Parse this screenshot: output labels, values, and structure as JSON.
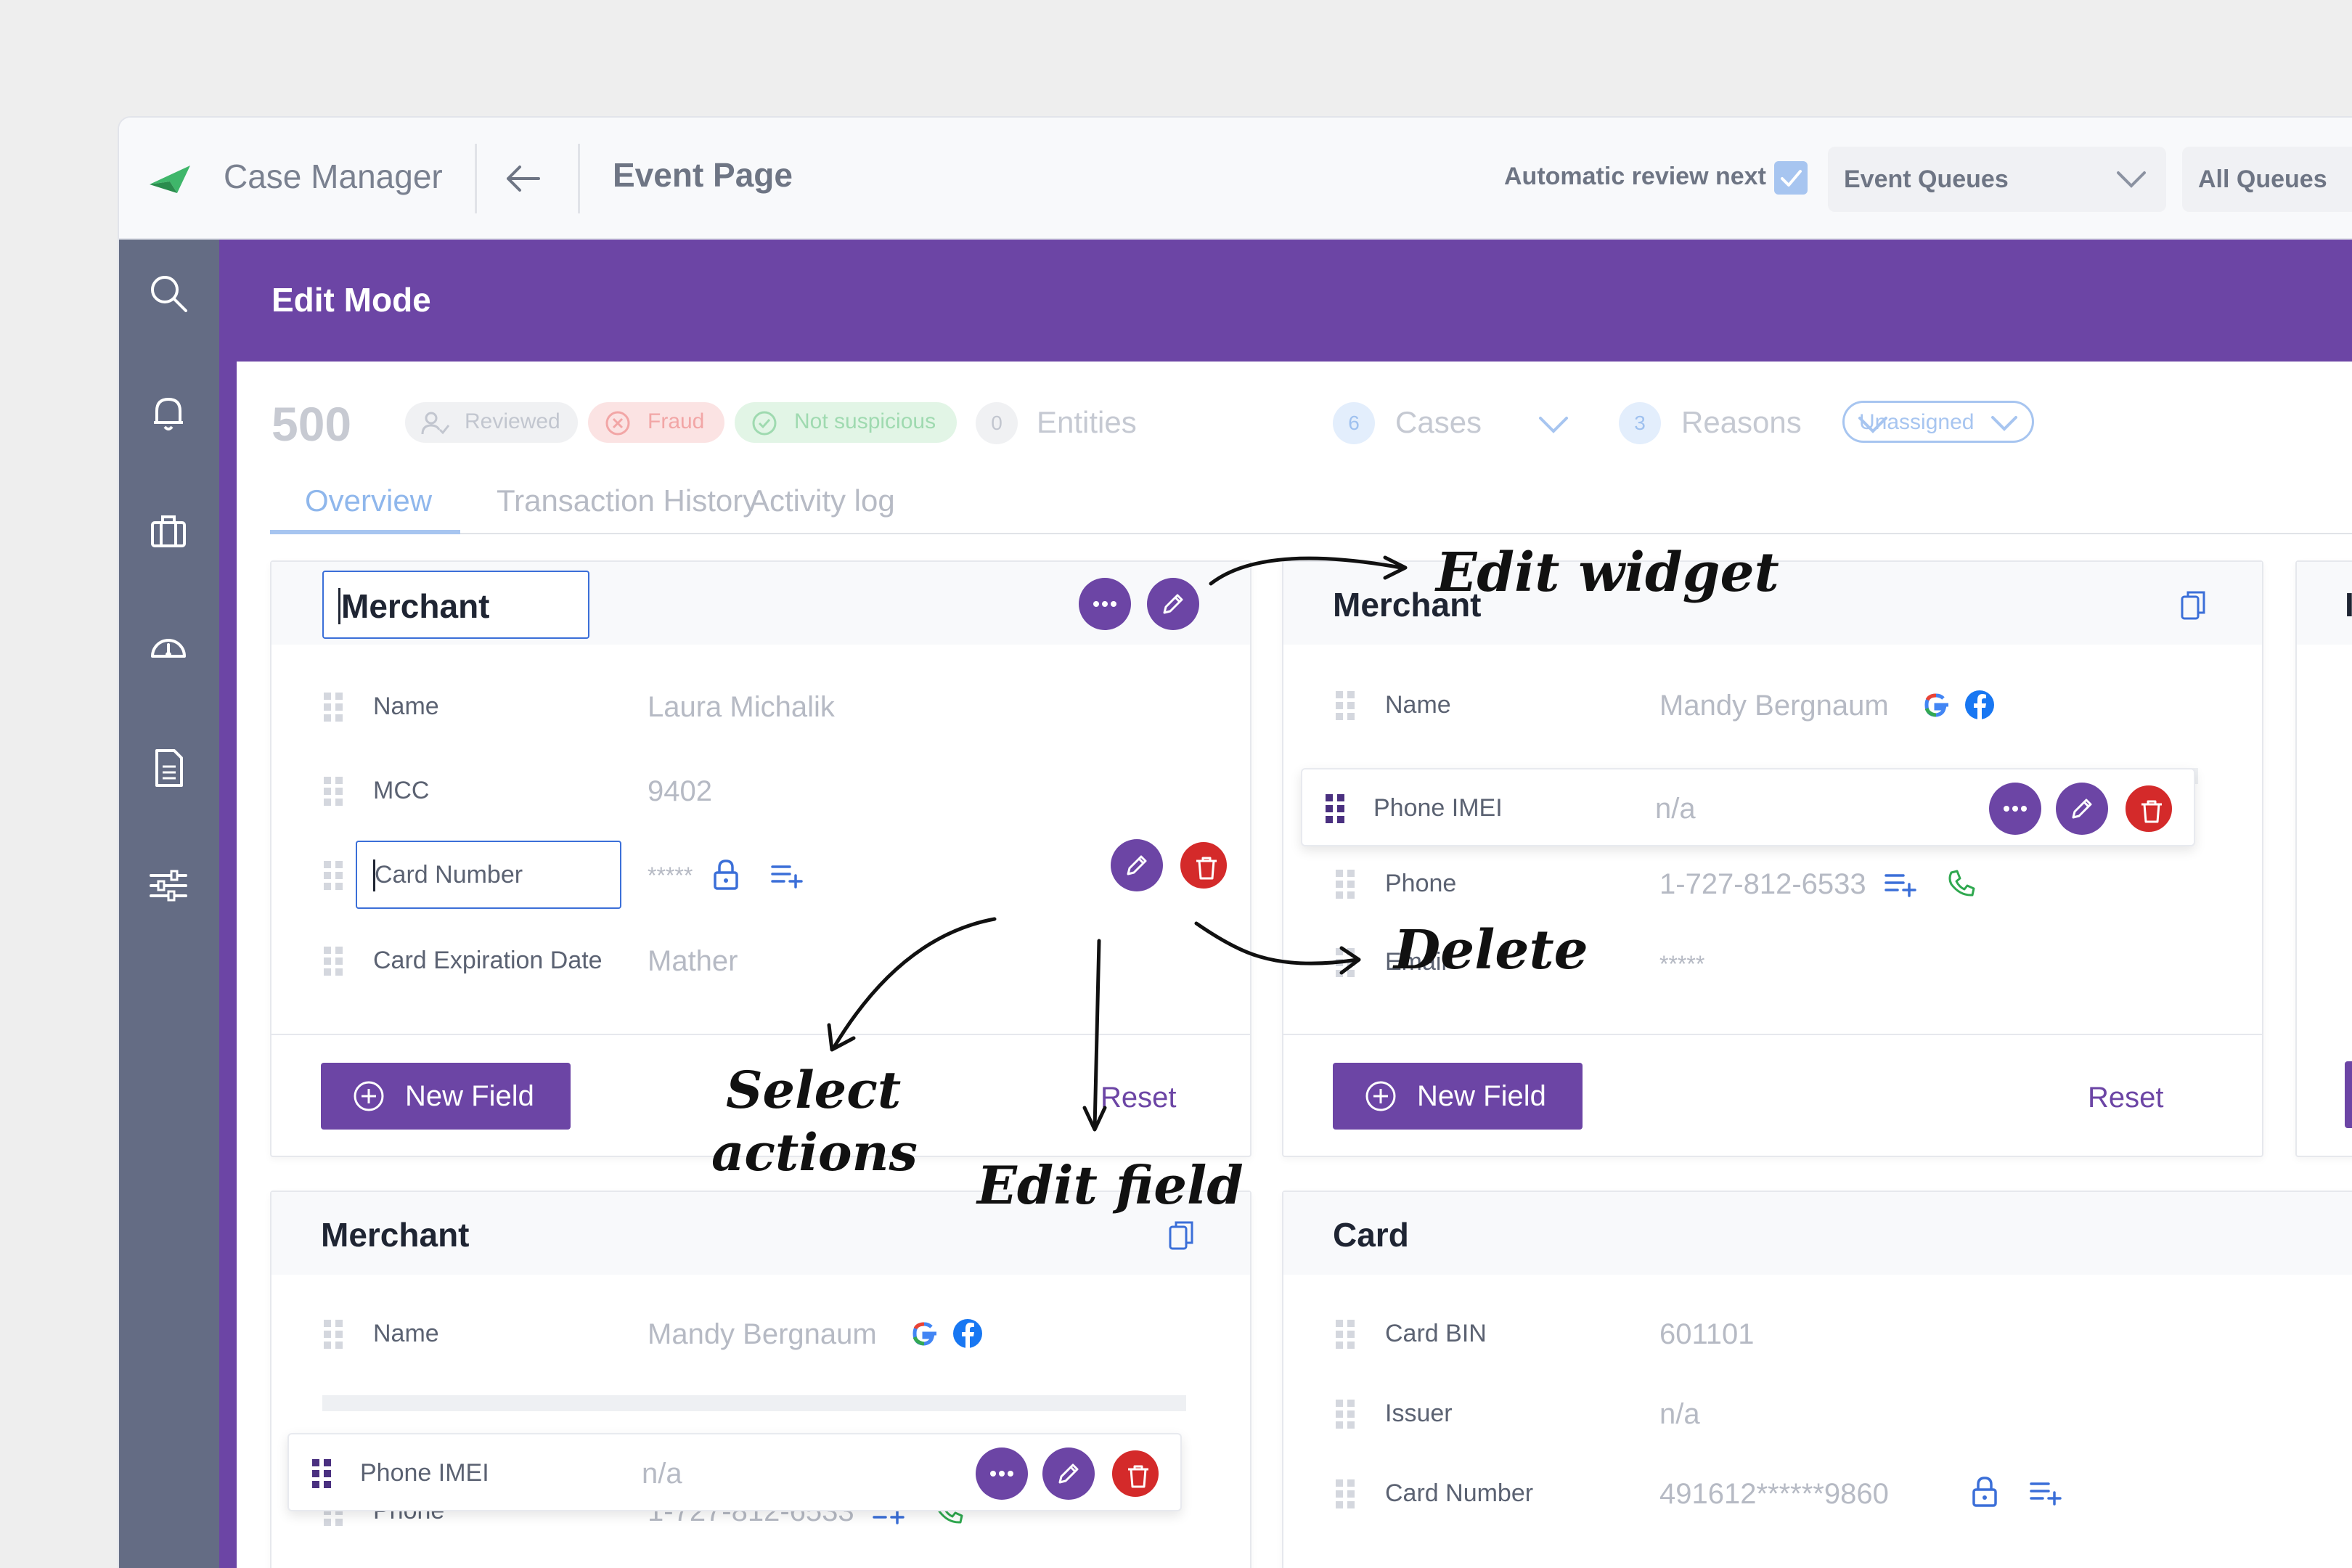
{
  "header": {
    "app_name": "Case Manager",
    "page_title": "Event Page",
    "auto_review_label": "Automatic review next",
    "auto_review_checked": true,
    "queue_dropdown": "Event Queues",
    "all_queues_dropdown": "All Queues"
  },
  "sidebar": {
    "icons": [
      "search-icon",
      "bell-icon",
      "briefcase-icon",
      "dashboard-icon",
      "document-icon",
      "sliders-icon"
    ]
  },
  "banner": {
    "title": "Edit Mode"
  },
  "case": {
    "number": "500",
    "statuses": [
      "Reviewed",
      "Fraud",
      "Not suspicious"
    ],
    "entities": {
      "count": "0",
      "label": "Entities"
    },
    "cases": {
      "count": "6",
      "label": "Cases"
    },
    "reasons": {
      "count": "3",
      "label": "Reasons"
    },
    "assignee": "Unassigned"
  },
  "tabs": [
    "Overview",
    "Transaction History",
    "Activity log"
  ],
  "active_tab": "Overview",
  "widgets": {
    "merchant_edit": {
      "title": "Merchant",
      "fields": [
        {
          "label": "Name",
          "value": "Laura Michalik"
        },
        {
          "label": "MCC",
          "value": "9402"
        },
        {
          "label": "Card Number",
          "value": "*****"
        },
        {
          "label": "Card Expiration Date",
          "value": "Mather"
        }
      ],
      "new_field_label": "New Field",
      "reset_label": "Reset"
    },
    "merchant_right": {
      "title": "Merchant",
      "fields": [
        {
          "label": "Name",
          "value": "Mandy Bergnaum"
        },
        {
          "label": "Phone IMEI",
          "value": "n/a"
        },
        {
          "label": "Phone",
          "value": "1-727-812-6533"
        },
        {
          "label": "Email",
          "value": "*****"
        }
      ],
      "new_field_label": "New Field",
      "reset_label": "Reset"
    },
    "merchant_bottom": {
      "title": "Merchant",
      "fields": [
        {
          "label": "Name",
          "value": "Mandy Bergnaum"
        },
        {
          "label": "Phone IMEI",
          "value": "n/a"
        },
        {
          "label": "Phone",
          "value": "1-727-812-6533"
        }
      ]
    },
    "card": {
      "title": "Card",
      "fields": [
        {
          "label": "Card BIN",
          "value": "601101"
        },
        {
          "label": "Issuer",
          "value": "n/a"
        },
        {
          "label": "Card Number",
          "value": "491612******9860"
        }
      ]
    },
    "partial_right_title": "I"
  },
  "annotations": {
    "edit_widget": "Edit widget",
    "delete": "Delete",
    "select_actions_line1": "Select",
    "select_actions_line2": "actions",
    "edit_field": "Edit field"
  },
  "colors": {
    "brand_purple": "#6c45a5",
    "sidebar": "#646c84",
    "delete_red": "#d42a2a",
    "accent_blue": "#a7c5f0"
  }
}
